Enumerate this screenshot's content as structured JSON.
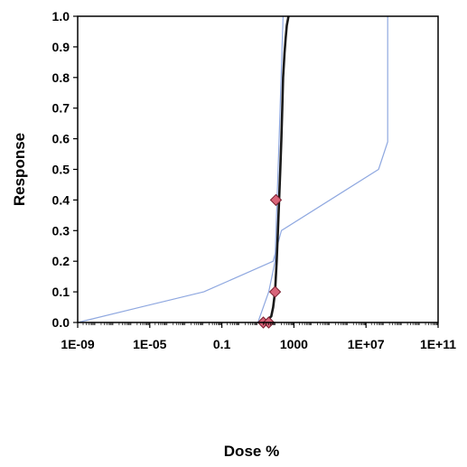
{
  "chart_data": {
    "type": "line",
    "xlabel": "Dose %",
    "ylabel": "Response",
    "x_scale": "log",
    "xlim": [
      1e-09,
      100000000000.0
    ],
    "ylim": [
      0,
      1
    ],
    "x_ticks": [
      1e-09,
      1e-05,
      0.1,
      1000,
      10000000.0,
      100000000000.0
    ],
    "x_tick_labels": [
      "1E-09",
      "1E-05",
      "0.1",
      "1000",
      "1E+07",
      "1E+11"
    ],
    "y_ticks": [
      0,
      0.1,
      0.2,
      0.3,
      0.4,
      0.5,
      0.6,
      0.7,
      0.8,
      0.9,
      1
    ],
    "y_tick_labels": [
      "0.0",
      "0.1",
      "0.2",
      "0.3",
      "0.4",
      "0.5",
      "0.6",
      "0.7",
      "0.8",
      "0.9",
      "1.0"
    ],
    "grid": false,
    "colors": {
      "fit": "#1a1a1a",
      "band": "#8fa8e0",
      "points_fill": "#d9657a",
      "points_stroke": "#7a2030"
    },
    "series": [
      {
        "role": "fit",
        "x": [
          25,
          55,
          70,
          90,
          110,
          130,
          150,
          175,
          200,
          225,
          250,
          300,
          350,
          400,
          500
        ],
        "y": [
          0.0,
          0.02,
          0.05,
          0.1,
          0.2,
          0.3,
          0.4,
          0.5,
          0.6,
          0.7,
          0.8,
          0.88,
          0.93,
          0.97,
          1.0
        ]
      },
      {
        "role": "band-upper",
        "x": [
          1e-09,
          3e-06,
          0.01,
          2,
          70,
          200,
          50000000.0,
          160000000.0,
          160000000.0
        ],
        "y": [
          0.0,
          0.05,
          0.1,
          0.16,
          0.2,
          0.3,
          0.5,
          0.59,
          1.0
        ]
      },
      {
        "role": "band-lower",
        "x": [
          10,
          40,
          90,
          150,
          250
        ],
        "y": [
          0.0,
          0.1,
          0.2,
          0.6,
          1.0
        ]
      },
      {
        "role": "observed",
        "x": [
          20,
          40,
          90,
          100
        ],
        "y": [
          0.0,
          0.0,
          0.1,
          0.4
        ]
      }
    ]
  }
}
